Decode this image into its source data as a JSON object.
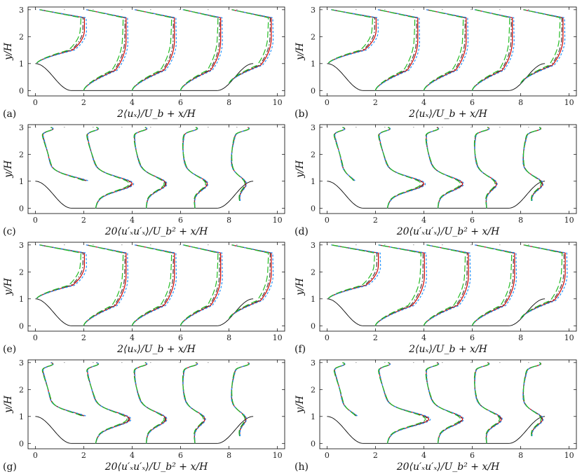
{
  "figure": {
    "colors": {
      "solid_red": "#cc0000",
      "dashdot_dark": "#444444",
      "dashed_blue": "#1e90ff",
      "longdash_green": "#22bb22",
      "hill": "#000000"
    },
    "xticks": [
      "0",
      "2",
      "4",
      "6",
      "8",
      "10"
    ],
    "yticks": [
      "0",
      "1",
      "2",
      "3"
    ],
    "ylabel": "y/H",
    "xlabel_mean": "2⟨uₓ⟩/U_b + x/H",
    "xlabel_stress": "20⟨u′ₓu′ₓ⟩/U_b² + x/H",
    "panels": [
      {
        "tag": "(a)",
        "kind": "mean"
      },
      {
        "tag": "(b)",
        "kind": "mean"
      },
      {
        "tag": "(c)",
        "kind": "stress"
      },
      {
        "tag": "(d)",
        "kind": "stress"
      },
      {
        "tag": "(e)",
        "kind": "mean"
      },
      {
        "tag": "(f)",
        "kind": "mean"
      },
      {
        "tag": "(g)",
        "kind": "stress"
      },
      {
        "tag": "(h)",
        "kind": "stress"
      }
    ]
  },
  "chart_data": [
    {
      "type": "line",
      "panel": "(a)",
      "xlabel": "2⟨uₓ⟩/U_b + x/H",
      "ylabel": "y/H",
      "xlim": [
        -0.3,
        10.3
      ],
      "ylim": [
        -0.2,
        3.1
      ],
      "profile_stations_x": [
        0.05,
        2,
        4,
        6,
        8
      ],
      "mean_profile_peak_x": [
        2.2,
        3.9,
        5.9,
        7.8,
        9.9
      ],
      "series": [
        {
          "style": "solid",
          "color": "#cc0000"
        },
        {
          "style": "dashdot",
          "color": "#444444"
        },
        {
          "style": "dashed",
          "color": "#1e90ff"
        },
        {
          "style": "longdash",
          "color": "#22bb22"
        }
      ]
    },
    {
      "type": "line",
      "panel": "(b)",
      "xlabel": "2⟨uₓ⟩/U_b + x/H",
      "ylabel": "y/H",
      "xlim": [
        -0.3,
        10.3
      ],
      "ylim": [
        -0.2,
        3.1
      ],
      "profile_stations_x": [
        0.05,
        2,
        4,
        6,
        8
      ],
      "mean_profile_peak_x": [
        2.2,
        3.9,
        5.9,
        7.8,
        9.9
      ]
    },
    {
      "type": "line",
      "panel": "(c)",
      "xlabel": "20⟨u′ₓu′ₓ⟩/U_b² + x/H",
      "ylabel": "y/H",
      "xlim": [
        -0.3,
        10.3
      ],
      "ylim": [
        -0.2,
        3.1
      ],
      "profile_stations_x": [
        0.05,
        2,
        4,
        6,
        8
      ],
      "stress_peak_x_near_y1": [
        2.3,
        4.0,
        5.4,
        7.1,
        8.7
      ]
    },
    {
      "type": "line",
      "panel": "(d)",
      "xlabel": "20⟨u′ₓu′ₓ⟩/U_b² + x/H",
      "ylabel": "y/H",
      "xlim": [
        -0.3,
        10.3
      ],
      "ylim": [
        -0.2,
        3.1
      ],
      "profile_stations_x": [
        0.05,
        2,
        4,
        6,
        8
      ],
      "stress_peak_x_near_y1": [
        1.2,
        4.0,
        5.6,
        7.0,
        8.9
      ]
    },
    {
      "type": "line",
      "panel": "(e)",
      "xlabel": "2⟨uₓ⟩/U_b + x/H",
      "ylabel": "y/H",
      "xlim": [
        -0.3,
        10.3
      ],
      "ylim": [
        -0.2,
        3.1
      ],
      "profile_stations_x": [
        0.05,
        2,
        4,
        6,
        8
      ],
      "mean_profile_peak_x": [
        2.2,
        3.9,
        5.9,
        7.8,
        9.9
      ]
    },
    {
      "type": "line",
      "panel": "(f)",
      "xlabel": "2⟨uₓ⟩/U_b + x/H",
      "ylabel": "y/H",
      "xlim": [
        -0.3,
        10.3
      ],
      "ylim": [
        -0.2,
        3.1
      ],
      "profile_stations_x": [
        0.05,
        2,
        4,
        6,
        8
      ],
      "mean_profile_peak_x": [
        2.3,
        4.2,
        6.0,
        7.9,
        10.0
      ]
    },
    {
      "type": "line",
      "panel": "(g)",
      "xlabel": "20⟨u′ₓu′ₓ⟩/U_b² + x/H",
      "ylabel": "y/H",
      "xlim": [
        -0.3,
        10.3
      ],
      "ylim": [
        -0.2,
        3.1
      ],
      "profile_stations_x": [
        0.05,
        2,
        4,
        6,
        8
      ],
      "stress_peak_x_near_y1": [
        2.2,
        3.9,
        5.4,
        7.0,
        8.7
      ]
    },
    {
      "type": "line",
      "panel": "(h)",
      "xlabel": "20⟨u′ₓu′ₓ⟩/U_b² + x/H",
      "ylabel": "y/H",
      "xlim": [
        -0.3,
        10.3
      ],
      "ylim": [
        -0.2,
        3.1
      ],
      "profile_stations_x": [
        0.05,
        2,
        4,
        6,
        8
      ],
      "stress_peak_x_near_y1": [
        1.3,
        4.2,
        5.6,
        7.2,
        8.9
      ]
    }
  ]
}
